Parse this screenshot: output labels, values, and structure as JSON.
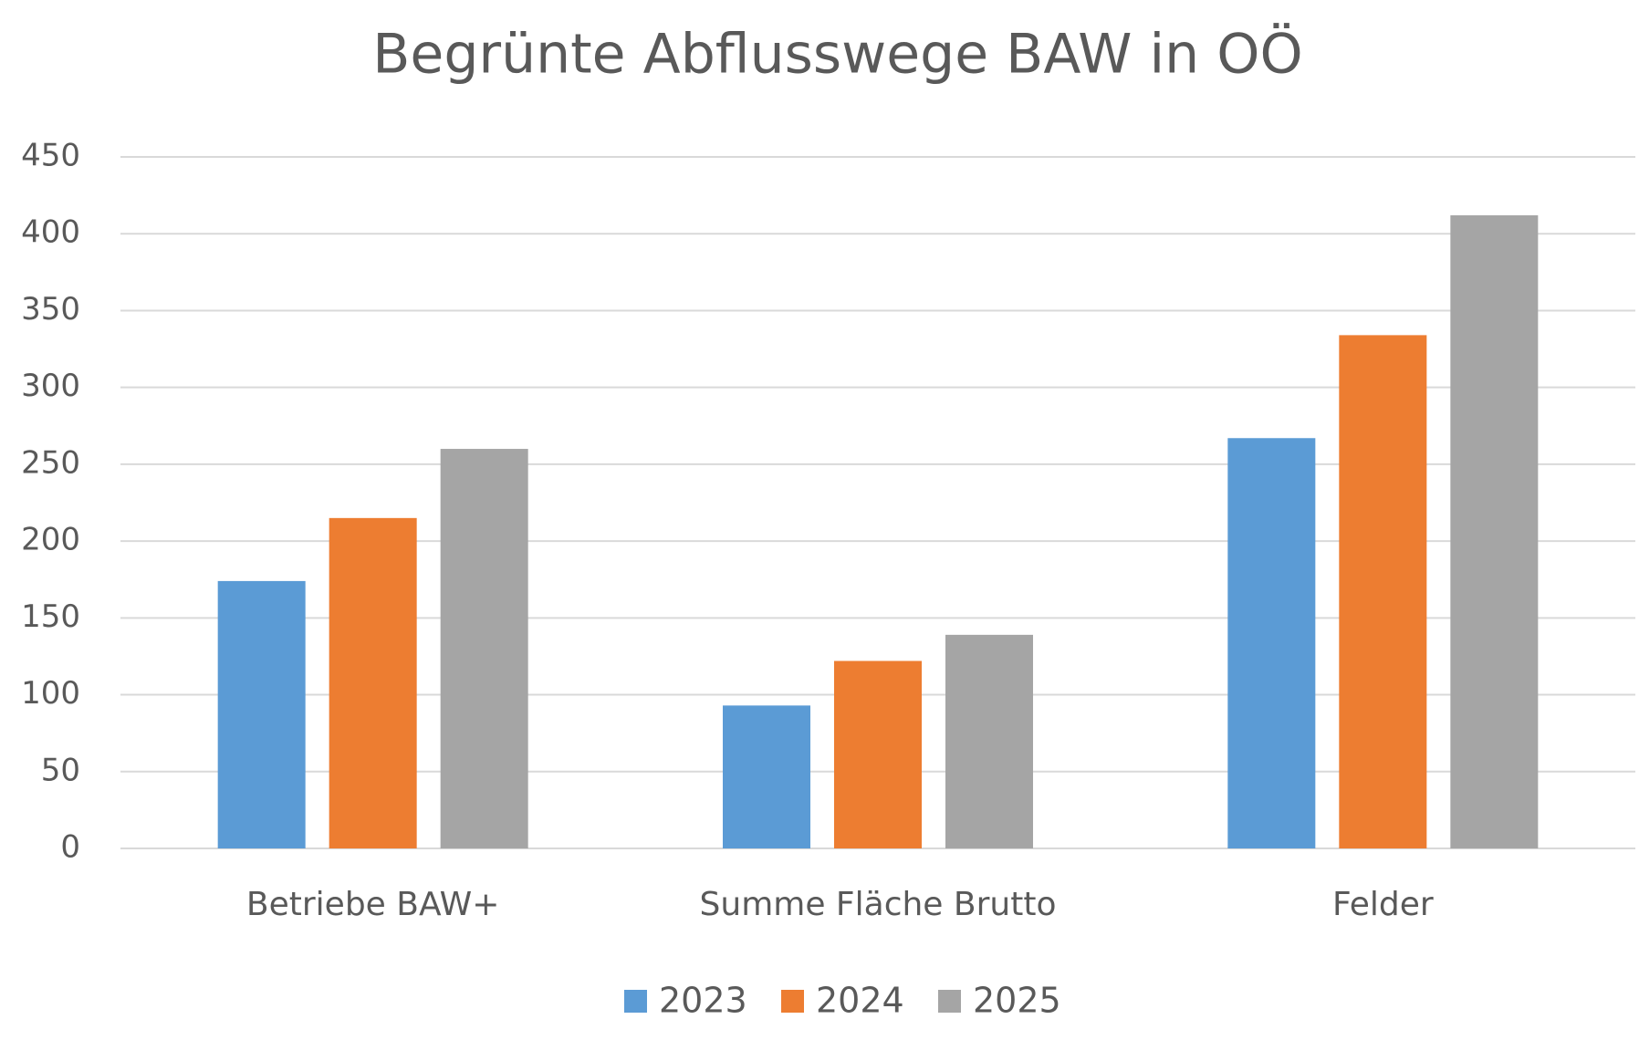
{
  "chart_data": {
    "type": "bar",
    "title": "Begrünte Abflusswege BAW in OÖ",
    "categories": [
      "Betriebe BAW+",
      "Summe Fläche Brutto",
      "Felder"
    ],
    "series": [
      {
        "name": "2023",
        "color": "#5b9bd5",
        "values": [
          174,
          93,
          267
        ]
      },
      {
        "name": "2024",
        "color": "#ed7d31",
        "values": [
          215,
          122,
          334
        ]
      },
      {
        "name": "2025",
        "color": "#a5a5a5",
        "values": [
          260,
          139,
          412
        ]
      }
    ],
    "ylim": [
      0,
      450
    ],
    "yticks": [
      0,
      50,
      100,
      150,
      200,
      250,
      300,
      350,
      400,
      450
    ],
    "grid": true,
    "legend": "bottom"
  }
}
